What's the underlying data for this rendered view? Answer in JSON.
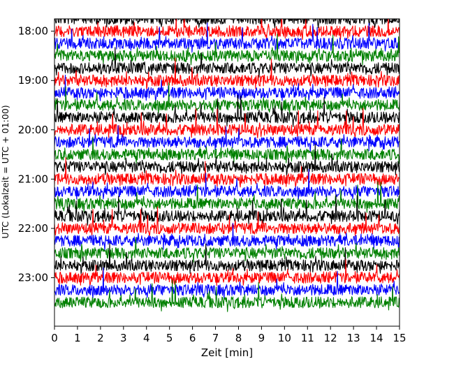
{
  "chart_data": {
    "type": "line",
    "title": "",
    "xlabel": "Zeit  [min]",
    "ylabel": "UTC (Lokalzeit = UTC + 01:00)",
    "xlim": [
      0,
      15
    ],
    "x_ticks": [
      "0",
      "1",
      "2",
      "3",
      "4",
      "5",
      "6",
      "7",
      "8",
      "9",
      "10",
      "11",
      "12",
      "13",
      "14",
      "15"
    ],
    "y_ticks": [
      "18:00",
      "19:00",
      "20:00",
      "21:00",
      "22:00",
      "23:00"
    ],
    "ylim_start": "17:45",
    "ylim_end": "23:59",
    "trace_interval_minutes": 15,
    "trace_start": "17:45",
    "trace_count": 24,
    "color_cycle": [
      "#000000",
      "#ff0000",
      "#0000ff",
      "#008000"
    ],
    "grid": false,
    "legend": "none"
  }
}
